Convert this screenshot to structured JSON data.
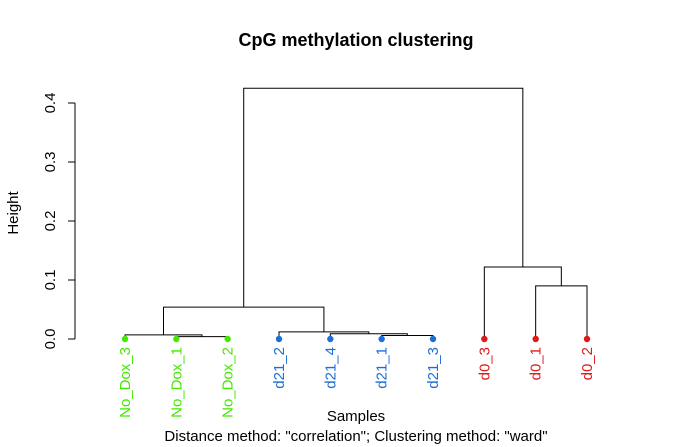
{
  "chart_data": {
    "type": "dendrogram",
    "title": "CpG methylation clustering",
    "xlabel": "Samples",
    "sublabel": "Distance method: \"correlation\"; Clustering method: \"ward\"",
    "ylabel": "Height",
    "ylim": [
      0,
      0.42
    ],
    "yticks": [
      "0.0",
      "0.1",
      "0.2",
      "0.3",
      "0.4"
    ],
    "ytick_values": [
      0.0,
      0.1,
      0.2,
      0.3,
      0.4
    ],
    "colors": {
      "No_Dox": "#44e800",
      "d21": "#1c6fd6",
      "d0": "#e01818"
    },
    "leaves": [
      {
        "label": "No_Dox_3",
        "group": "No_Dox"
      },
      {
        "label": "No_Dox_1",
        "group": "No_Dox"
      },
      {
        "label": "No_Dox_2",
        "group": "No_Dox"
      },
      {
        "label": "d21_2",
        "group": "d21"
      },
      {
        "label": "d21_4",
        "group": "d21"
      },
      {
        "label": "d21_1",
        "group": "d21"
      },
      {
        "label": "d21_3",
        "group": "d21"
      },
      {
        "label": "d0_3",
        "group": "d0"
      },
      {
        "label": "d0_1",
        "group": "d0"
      },
      {
        "label": "d0_2",
        "group": "d0"
      }
    ],
    "merges": [
      {
        "left": "No_Dox_1",
        "right": "No_Dox_2",
        "height": 0.004
      },
      {
        "left": "No_Dox_3",
        "right": "m1",
        "height": 0.007
      },
      {
        "left": "d21_1",
        "right": "d21_3",
        "height": 0.006
      },
      {
        "left": "d21_4",
        "right": "m3",
        "height": 0.009
      },
      {
        "left": "d21_2",
        "right": "m4",
        "height": 0.012
      },
      {
        "left": "m2",
        "right": "m5",
        "height": 0.054
      },
      {
        "left": "d0_1",
        "right": "d0_2",
        "height": 0.09
      },
      {
        "left": "d0_3",
        "right": "m7",
        "height": 0.122
      },
      {
        "left": "m6",
        "right": "m8",
        "height": 0.425
      }
    ]
  }
}
